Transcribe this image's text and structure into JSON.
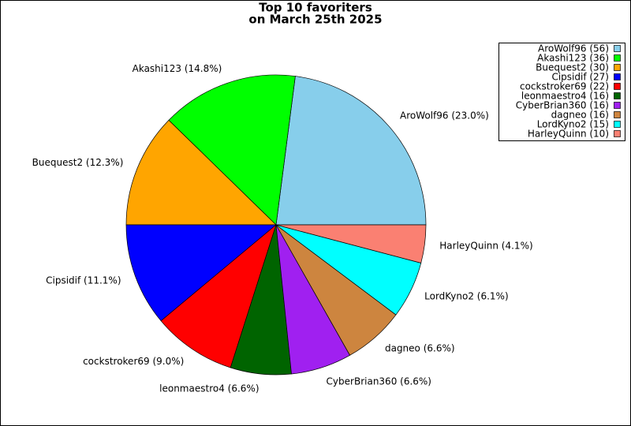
{
  "chart_data": {
    "type": "pie",
    "title": [
      "Top 10 favoriters",
      "on March 25th 2025"
    ],
    "categories": [
      "AroWolf96 (56)",
      "Akashi123 (36)",
      "Buequest2 (30)",
      "Cipsidif (27)",
      "cockstroker69 (22)",
      "leonmaestro4 (16)",
      "CyberBrian360 (16)",
      "dagneo (16)",
      "LordKyno2 (15)",
      "HarleyQuinn (10)"
    ],
    "values": [
      56,
      36,
      30,
      27,
      22,
      16,
      16,
      16,
      15,
      10
    ],
    "value_labels": [
      "AroWolf96 (23.0%)",
      "Akashi123 (14.8%)",
      "Buequest2 (12.3%)",
      "Cipsidif (11.1%)",
      "cockstroker69 (9.0%)",
      "leonmaestro4 (6.6%)",
      "CyberBrian360 (6.6%)",
      "dagneo (6.6%)",
      "LordKyno2 (6.1%)",
      "HarleyQuinn (4.1%)"
    ],
    "colors": [
      "#87ceeb",
      "#00ff00",
      "#ffa500",
      "#0000ff",
      "#ff0000",
      "#006400",
      "#a020f0",
      "#cd853f",
      "#00ffff",
      "#fa8072"
    ],
    "legend": "upper right"
  }
}
